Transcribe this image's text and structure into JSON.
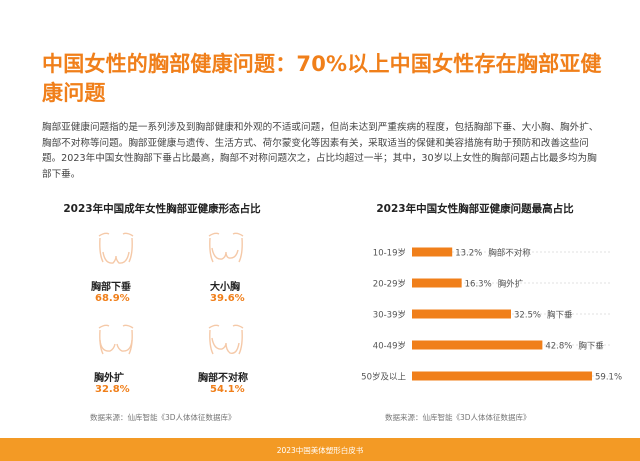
{
  "title": "中国女性的胸部健康问题：70%以上中国女性存在胸部亚健康问题",
  "intro": "胸部亚健康问题指的是一系列涉及到胸部健康和外观的不适或问题，但尚未达到严重疾病的程度，包括胸部下垂、大小胸、胸外扩、胸部不对称等问题。胸部亚健康与遗传、生活方式、荷尔蒙变化等因素有关，采取适当的保健和美容措施有助于预防和改善这些问题。2023年中国女性胸部下垂占比最高，胸部不对称问题次之，占比均超过一半；其中，30岁以上女性的胸部问题占比最多均为胸部下垂。",
  "left_section": {
    "title": "2023年中国成年女性胸部亚健康形态占比",
    "items": [
      {
        "name": "胸部下垂",
        "pct": "68.9%",
        "icon": "sagging-chest-icon"
      },
      {
        "name": "大小胸",
        "pct": "39.6%",
        "icon": "uneven-size-chest-icon"
      },
      {
        "name": "胸外扩",
        "pct": "32.8%",
        "icon": "wide-set-chest-icon"
      },
      {
        "name": "胸部不对称",
        "pct": "54.1%",
        "icon": "asymmetric-chest-icon"
      }
    ],
    "source": "数据来源：仙库智能《3D人体体征数据库》"
  },
  "right_section": {
    "title": "2023年中国女性胸部亚健康问题最高占比",
    "source": "数据来源：仙库智能《3D人体体征数据库》"
  },
  "chart_data": {
    "type": "bar",
    "orientation": "horizontal",
    "categories": [
      "10-19岁",
      "20-29岁",
      "30-39岁",
      "40-49岁",
      "50岁及以上"
    ],
    "values": [
      13.2,
      16.3,
      32.5,
      42.8,
      59.1
    ],
    "value_labels": [
      "13.2%",
      "16.3%",
      "32.5%",
      "42.8%",
      "59.1%"
    ],
    "issue_labels": [
      "胸部不对称",
      "胸外扩",
      "胸下垂",
      "胸下垂",
      "胸下垂"
    ],
    "xlim": [
      0,
      65
    ],
    "grid": true,
    "bar_color": "#f07f1a"
  },
  "footer": "2023中国美体塑形白皮书",
  "colors": {
    "accent": "#f07f1a",
    "footer": "#f39a25",
    "icon": "#f5c9a8"
  }
}
